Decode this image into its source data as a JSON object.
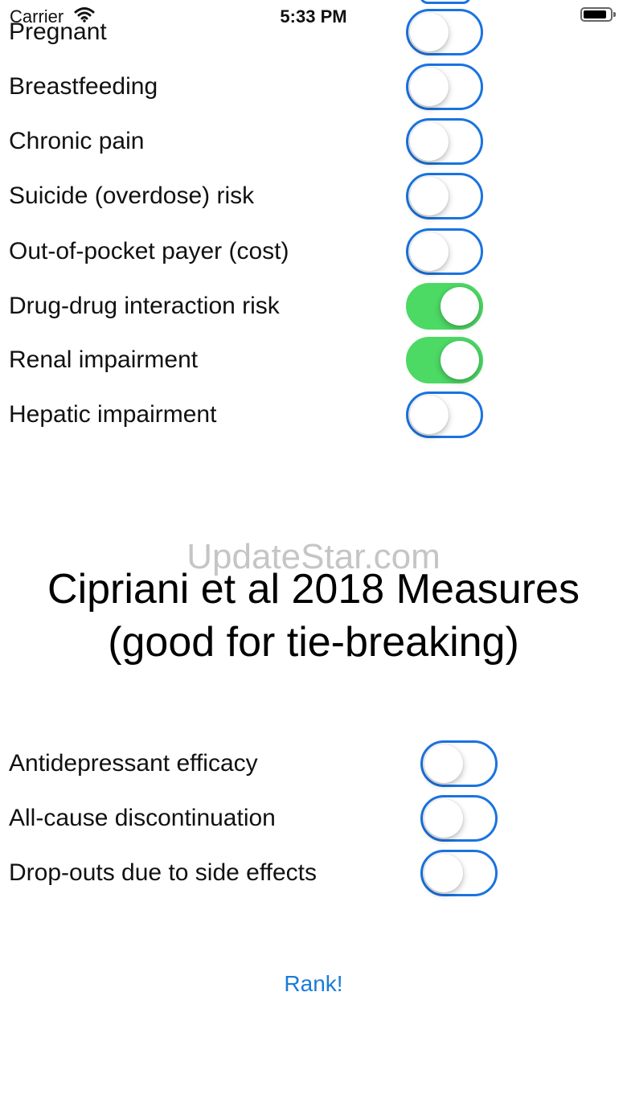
{
  "status_bar": {
    "carrier": "Carrier",
    "time": "5:33 PM",
    "wifi_icon": "wifi-icon",
    "battery_icon": "battery-icon"
  },
  "patient_factors": [
    {
      "label": "Pregnant",
      "on": false
    },
    {
      "label": "Breastfeeding",
      "on": false
    },
    {
      "label": "Chronic pain",
      "on": false
    },
    {
      "label": "Suicide (overdose) risk",
      "on": false
    },
    {
      "label": "Out-of-pocket payer (cost)",
      "on": false
    },
    {
      "label": "Drug-drug interaction risk",
      "on": true
    },
    {
      "label": "Renal impairment",
      "on": true
    },
    {
      "label": "Hepatic impairment",
      "on": false
    }
  ],
  "watermark": "UpdateStar.com",
  "section_title_line1": "Cipriani et al 2018 Measures",
  "section_title_line2": "(good for tie-breaking)",
  "measures": [
    {
      "label": "Antidepressant efficacy",
      "on": false
    },
    {
      "label": "All-cause discontinuation",
      "on": false
    },
    {
      "label": "Drop-outs due to side effects",
      "on": false
    }
  ],
  "rank_button": "Rank!",
  "colors": {
    "toggle_border": "#1a73e0",
    "toggle_on": "#4cd964",
    "link": "#1a7bd8"
  }
}
